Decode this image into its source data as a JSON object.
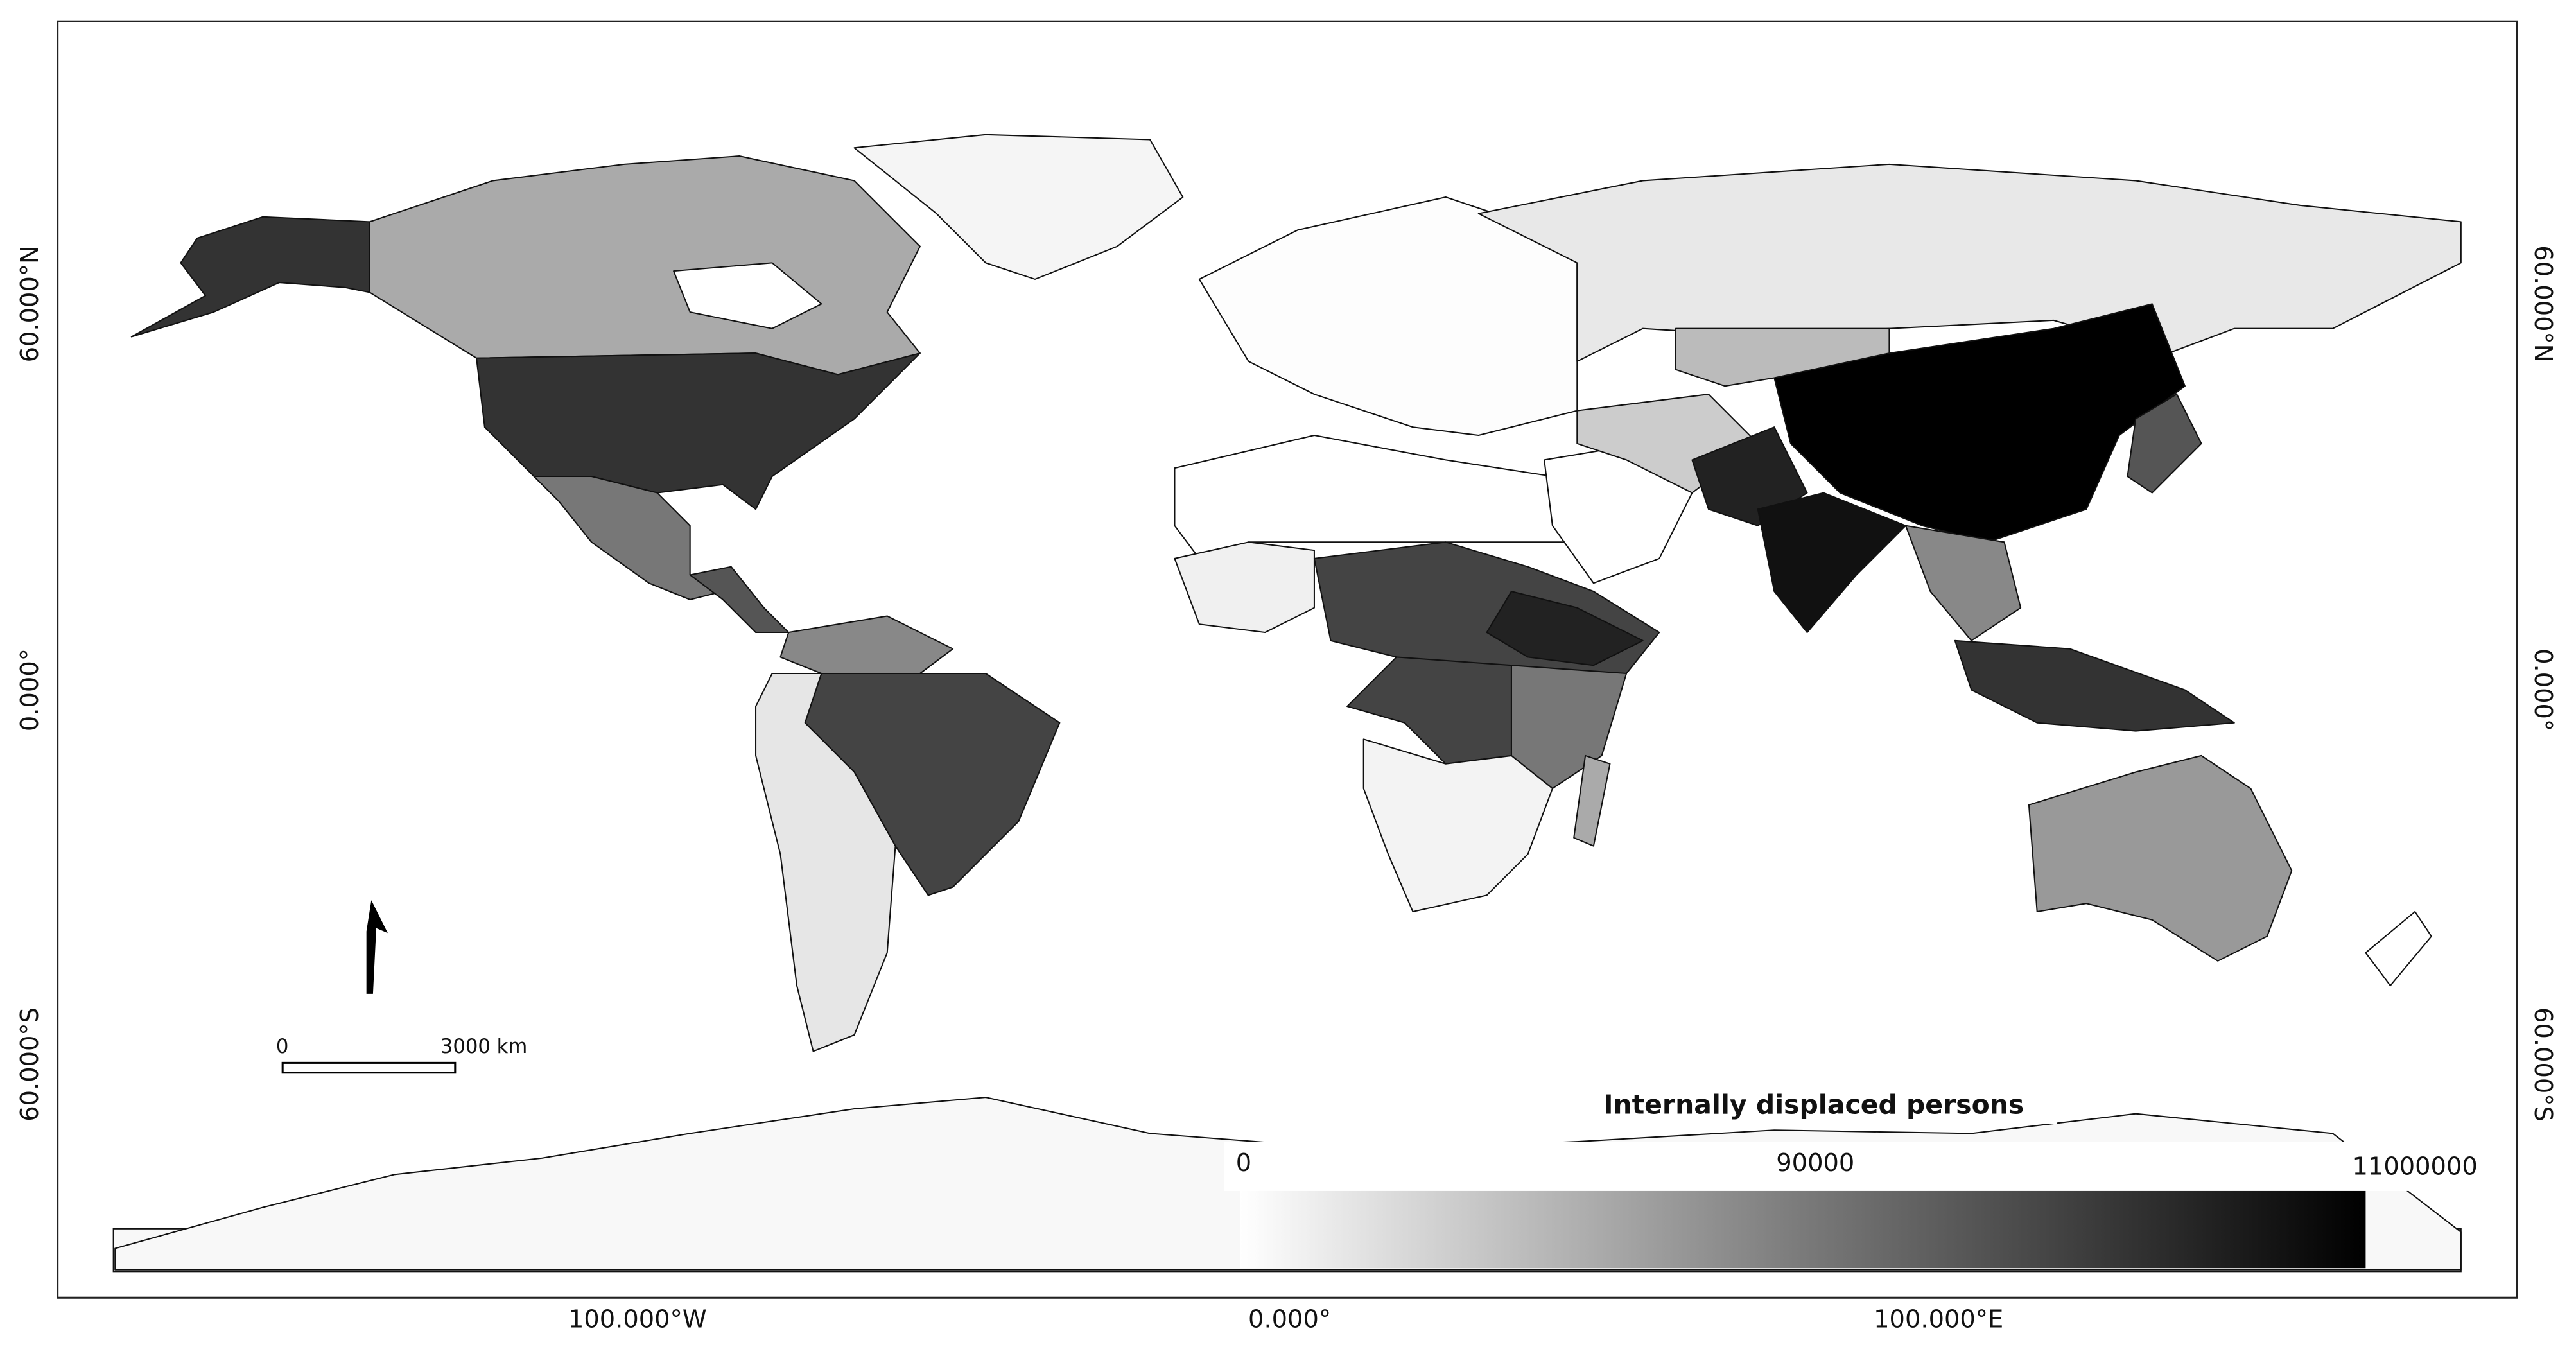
{
  "axes": {
    "bottom": [
      "100.000°W",
      "0.000°",
      "100.000°E"
    ],
    "side": [
      "60.000°N",
      "0.000°",
      "60.000°S"
    ]
  },
  "legend": {
    "title": "Internally displaced persons",
    "ticks": [
      "0",
      "90000",
      "11000000"
    ]
  },
  "scale_bar": {
    "start": "0",
    "end": "3000 km"
  }
}
